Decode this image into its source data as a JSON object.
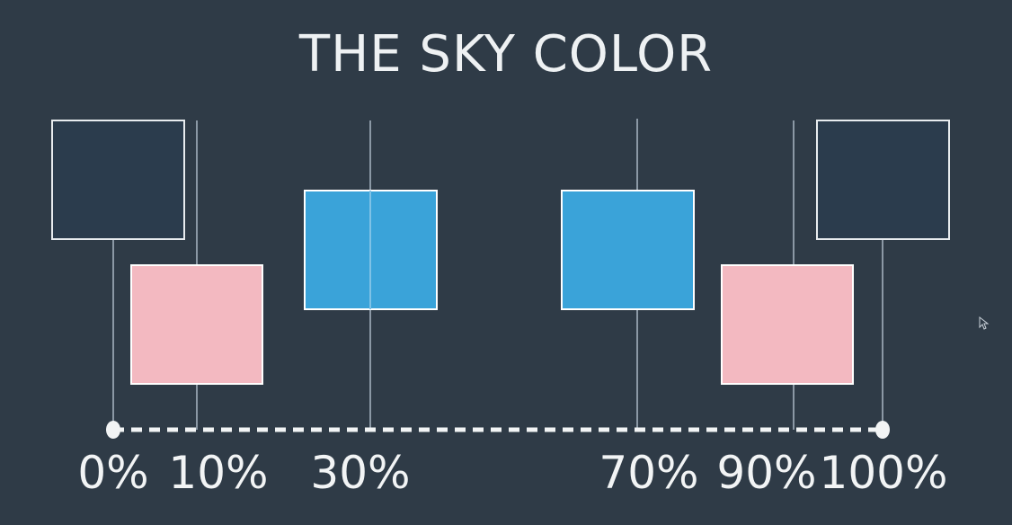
{
  "title": "THE SKY COLOR",
  "stops": [
    {
      "label": "0%"
    },
    {
      "label": "10%"
    },
    {
      "label": "30%"
    },
    {
      "label": "70%"
    },
    {
      "label": "90%"
    },
    {
      "label": "100%"
    }
  ],
  "colors": {
    "background": "#2f3b47",
    "night": "#2b3c4d",
    "pink": "#f3b9c1",
    "blue": "#3aa3d9",
    "line": "#8b98a5",
    "text": "#eef1f3"
  }
}
